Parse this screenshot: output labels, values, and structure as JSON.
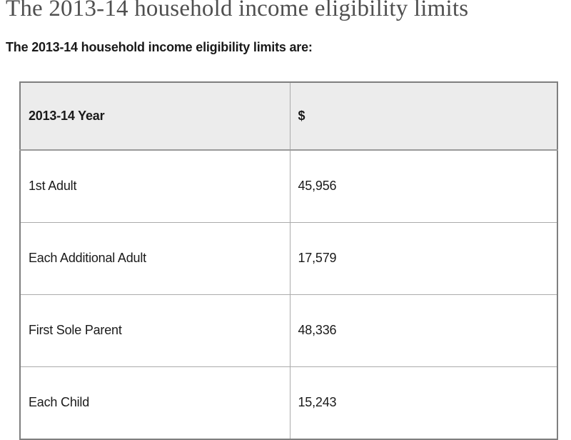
{
  "page": {
    "title": "The 2013-14 household income eligibility limits",
    "intro": "The 2013-14 household income eligibility limits are:"
  },
  "table": {
    "headers": [
      "2013-14 Year",
      "$"
    ],
    "rows": [
      {
        "label": "1st Adult",
        "amount": "45,956"
      },
      {
        "label": "Each Additional Adult",
        "amount": "17,579"
      },
      {
        "label": "First Sole Parent",
        "amount": "48,336"
      },
      {
        "label": "Each Child",
        "amount": "15,243"
      }
    ]
  },
  "colors": {
    "title": "#4f4f4f",
    "body_text": "#1a1a1a",
    "header_bg": "#ececec",
    "table_outer_border": "#7f7f7f",
    "table_inner_border": "#ababab"
  }
}
